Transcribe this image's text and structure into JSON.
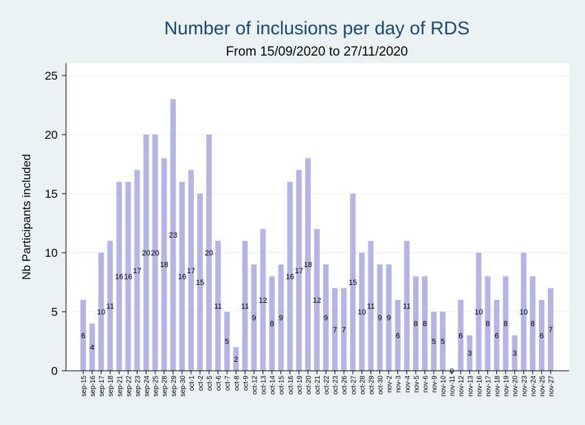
{
  "chart_data": {
    "type": "bar",
    "title": "Number of inclusions per day of RDS",
    "subtitle": "From 15/09/2020 to 27/11/2020",
    "ylabel": "Nb Participants included",
    "xlabel": "",
    "ylim": [
      0,
      25
    ],
    "yticks": [
      0,
      5,
      10,
      15,
      20,
      25
    ],
    "grid": true,
    "legend": "none",
    "bar_color": "#b4b4e6",
    "title_color": "#1a476f",
    "categories": [
      "sep-15",
      "sep-16",
      "sep-17",
      "sep-18",
      "sep-21",
      "sep-22",
      "sep-23",
      "sep-24",
      "sep-25",
      "sep-28",
      "sep-29",
      "sep-30",
      "oct-1",
      "oct-2",
      "oct-5",
      "oct-6",
      "oct-7",
      "oct-8",
      "oct-9",
      "oct-12",
      "oct-13",
      "oct-14",
      "oct-15",
      "oct-16",
      "oct-19",
      "oct-20",
      "oct-21",
      "oct-22",
      "oct-23",
      "oct-26",
      "oct-27",
      "oct-28",
      "oct-29",
      "oct-30",
      "nov-2",
      "nov-3",
      "nov-4",
      "nov-5",
      "nov-6",
      "nov-9",
      "nov-10",
      "nov-11",
      "nov-12",
      "nov-13",
      "nov-16",
      "nov-17",
      "nov-18",
      "nov-19",
      "nov-20",
      "nov-23",
      "nov-24",
      "nov-25",
      "nov-27"
    ],
    "values": [
      6,
      4,
      10,
      11,
      16,
      16,
      17,
      20,
      20,
      18,
      23,
      16,
      17,
      15,
      20,
      11,
      5,
      2,
      11,
      9,
      12,
      8,
      9,
      16,
      17,
      18,
      12,
      9,
      7,
      7,
      15,
      10,
      11,
      9,
      9,
      6,
      11,
      8,
      8,
      5,
      5,
      0,
      6,
      3,
      10,
      8,
      6,
      8,
      3,
      10,
      8,
      6,
      7
    ]
  }
}
